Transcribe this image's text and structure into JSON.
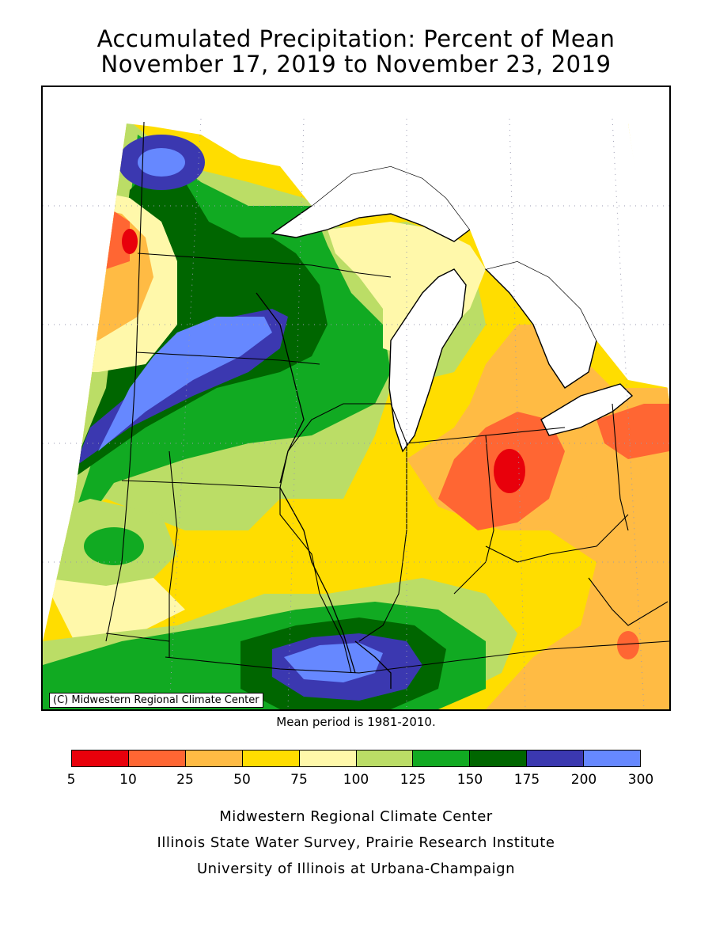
{
  "header": {
    "title_line1": "Accumulated Precipitation: Percent of Mean",
    "title_line2": "November 17, 2019 to November 23, 2019"
  },
  "map": {
    "credit": "(C) Midwestern Regional Climate Center",
    "mean_note": "Mean period is 1981-2010.",
    "palette": {
      "5-10": "#e8000b",
      "10-25": "#ff6633",
      "25-50": "#ffbb44",
      "50-75": "#ffdd00",
      "75-100": "#fff8aa",
      "100-125": "#bbdd66",
      "125-150": "#11aa22",
      "150-175": "#006600",
      "175-200": "#3b38b0",
      "200-300": "#6688ff"
    }
  },
  "legend": {
    "colors": [
      "#e8000b",
      "#ff6633",
      "#ffbb44",
      "#ffdd00",
      "#fff8aa",
      "#bbdd66",
      "#11aa22",
      "#006600",
      "#3b38b0",
      "#6688ff"
    ],
    "labels": [
      "5",
      "10",
      "25",
      "50",
      "75",
      "100",
      "125",
      "150",
      "175",
      "200",
      "300"
    ]
  },
  "footer": {
    "line1": "Midwestern Regional Climate Center",
    "line2": "Illinois State Water Survey, Prairie Research Institute",
    "line3": "University of Illinois at Urbana-Champaign"
  }
}
